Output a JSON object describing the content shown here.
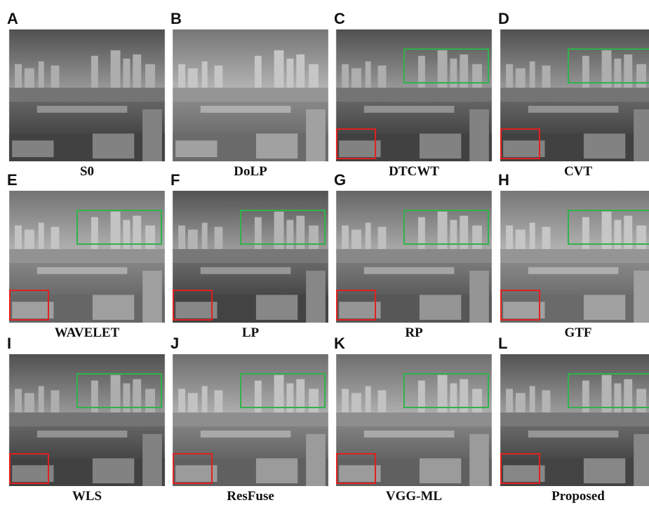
{
  "panels": [
    {
      "letter": "A",
      "caption": "S0"
    },
    {
      "letter": "B",
      "caption": "DoLP"
    },
    {
      "letter": "C",
      "caption": "DTCWT"
    },
    {
      "letter": "D",
      "caption": "CVT"
    },
    {
      "letter": "E",
      "caption": "WAVELET"
    },
    {
      "letter": "F",
      "caption": "LP"
    },
    {
      "letter": "G",
      "caption": "RP"
    },
    {
      "letter": "H",
      "caption": "GTF"
    },
    {
      "letter": "I",
      "caption": "WLS"
    },
    {
      "letter": "J",
      "caption": "ResFuse"
    },
    {
      "letter": "K",
      "caption": "VGG-ML"
    },
    {
      "letter": "L",
      "caption": "Proposed"
    }
  ]
}
